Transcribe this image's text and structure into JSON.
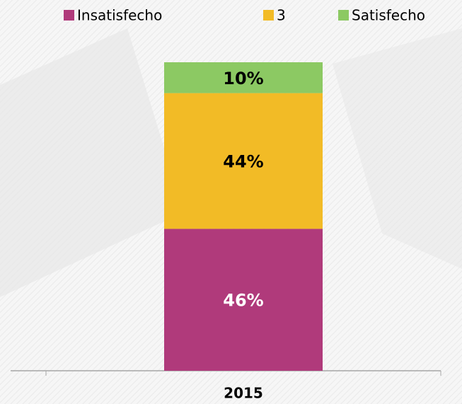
{
  "chart_data": {
    "type": "stacked_bar",
    "categories": [
      "2015"
    ],
    "series": [
      {
        "name": "Insatisfecho",
        "color": "#b03a7b",
        "values": [
          46
        ],
        "value_labels": [
          "46%"
        ],
        "label_color": "#ffffff"
      },
      {
        "name": "3",
        "color": "#f2bb26",
        "values": [
          44
        ],
        "value_labels": [
          "44%"
        ],
        "label_color": "#000000"
      },
      {
        "name": "Satisfecho",
        "color": "#8cc963",
        "values": [
          10
        ],
        "value_labels": [
          "10%"
        ],
        "label_color": "#000000"
      }
    ],
    "legend": "top"
  }
}
